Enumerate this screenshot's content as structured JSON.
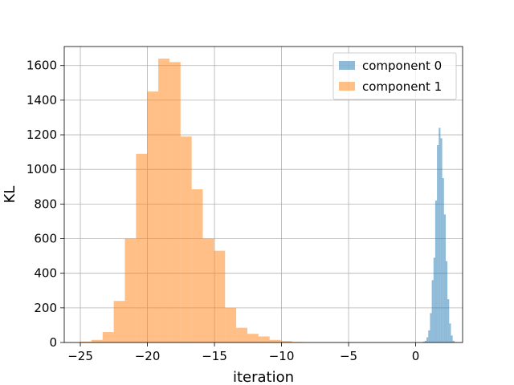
{
  "chart_data": {
    "type": "histogram",
    "title": "",
    "xlabel": "iteration",
    "ylabel": "KL",
    "xlim": [
      -26.2,
      3.5
    ],
    "ylim": [
      0,
      1710
    ],
    "xticks": [
      -25,
      -20,
      -15,
      -10,
      -5,
      0
    ],
    "yticks": [
      0,
      200,
      400,
      600,
      800,
      1000,
      1200,
      1400,
      1600
    ],
    "grid": true,
    "legend_position": "top-right",
    "series": [
      {
        "name": "component 0",
        "color": "#1f77b4",
        "alpha": 0.5,
        "bins": [
          {
            "x0": 0.55,
            "x1": 0.68,
            "count": 5
          },
          {
            "x0": 0.68,
            "x1": 0.81,
            "count": 10
          },
          {
            "x0": 0.81,
            "x1": 0.94,
            "count": 30
          },
          {
            "x0": 0.94,
            "x1": 1.07,
            "count": 70
          },
          {
            "x0": 1.07,
            "x1": 1.2,
            "count": 170
          },
          {
            "x0": 1.2,
            "x1": 1.33,
            "count": 360
          },
          {
            "x0": 1.33,
            "x1": 1.46,
            "count": 490
          },
          {
            "x0": 1.46,
            "x1": 1.59,
            "count": 820
          },
          {
            "x0": 1.59,
            "x1": 1.72,
            "count": 1140
          },
          {
            "x0": 1.72,
            "x1": 1.85,
            "count": 1240
          },
          {
            "x0": 1.85,
            "x1": 1.98,
            "count": 1180
          },
          {
            "x0": 1.98,
            "x1": 2.11,
            "count": 950
          },
          {
            "x0": 2.11,
            "x1": 2.24,
            "count": 740
          },
          {
            "x0": 2.24,
            "x1": 2.37,
            "count": 470
          },
          {
            "x0": 2.37,
            "x1": 2.5,
            "count": 250
          },
          {
            "x0": 2.5,
            "x1": 2.63,
            "count": 110
          },
          {
            "x0": 2.63,
            "x1": 2.76,
            "count": 40
          },
          {
            "x0": 2.76,
            "x1": 2.89,
            "count": 10
          }
        ]
      },
      {
        "name": "component 1",
        "color": "#ff7f0e",
        "alpha": 0.5,
        "bins": [
          {
            "x0": -25.0,
            "x1": -24.17,
            "count": 5
          },
          {
            "x0": -24.17,
            "x1": -23.34,
            "count": 15
          },
          {
            "x0": -23.34,
            "x1": -22.51,
            "count": 60
          },
          {
            "x0": -22.51,
            "x1": -21.68,
            "count": 240
          },
          {
            "x0": -21.68,
            "x1": -20.85,
            "count": 600
          },
          {
            "x0": -20.85,
            "x1": -20.02,
            "count": 1090
          },
          {
            "x0": -20.02,
            "x1": -19.19,
            "count": 1450
          },
          {
            "x0": -19.19,
            "x1": -18.36,
            "count": 1640
          },
          {
            "x0": -18.36,
            "x1": -17.53,
            "count": 1620
          },
          {
            "x0": -17.53,
            "x1": -16.7,
            "count": 1190
          },
          {
            "x0": -16.7,
            "x1": -15.87,
            "count": 885
          },
          {
            "x0": -15.87,
            "x1": -15.04,
            "count": 600
          },
          {
            "x0": -15.04,
            "x1": -14.21,
            "count": 530
          },
          {
            "x0": -14.21,
            "x1": -13.38,
            "count": 200
          },
          {
            "x0": -13.38,
            "x1": -12.55,
            "count": 85
          },
          {
            "x0": -12.55,
            "x1": -11.72,
            "count": 50
          },
          {
            "x0": -11.72,
            "x1": -10.89,
            "count": 35
          },
          {
            "x0": -10.89,
            "x1": -10.06,
            "count": 15
          },
          {
            "x0": -10.06,
            "x1": -9.23,
            "count": 8
          },
          {
            "x0": -9.23,
            "x1": -8.4,
            "count": 3
          }
        ]
      }
    ]
  }
}
